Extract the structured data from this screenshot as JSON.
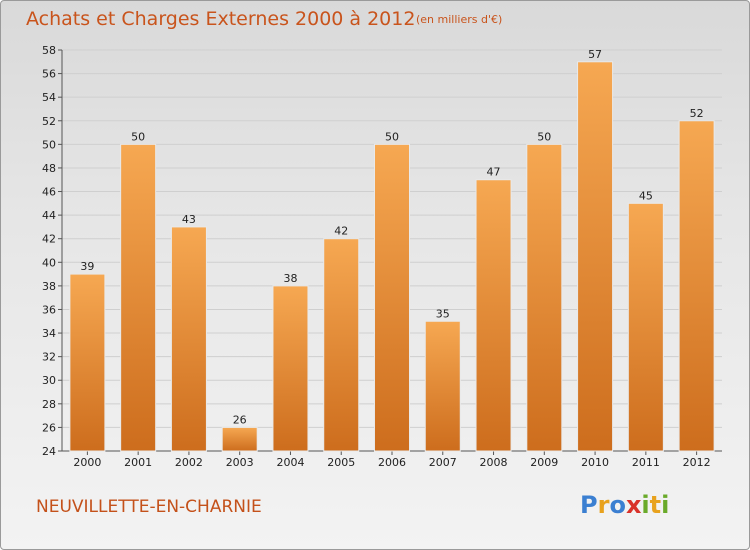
{
  "header": {
    "title": "Achats et Charges Externes 2000 à 2012",
    "subtitle": "(en milliers d'€)"
  },
  "footer": {
    "commune": "NEUVILLETTE-EN-CHARNIE",
    "logo": "Proxiti",
    "logo_letters": [
      "P",
      "r",
      "o",
      "x",
      "i",
      "t",
      "i"
    ],
    "logo_colors": [
      "#3b7fd1",
      "#e8a21e",
      "#3b7fd1",
      "#d9322a",
      "#6aaa2a",
      "#e8a21e",
      "#6aaa2a"
    ]
  },
  "colors": {
    "bar": "#f0a04a",
    "bar_dark": "#c96a1e",
    "title": "#c9541c"
  },
  "chart_data": {
    "type": "bar",
    "title": "Achats et Charges Externes 2000 à 2012",
    "subtitle": "(en milliers d'€)",
    "categories": [
      "2000",
      "2001",
      "2002",
      "2003",
      "2004",
      "2005",
      "2006",
      "2007",
      "2008",
      "2009",
      "2010",
      "2011",
      "2012"
    ],
    "values": [
      39,
      50,
      43,
      26,
      38,
      42,
      50,
      35,
      47,
      50,
      57,
      45,
      52
    ],
    "ylim": [
      24,
      58
    ],
    "yticks": [
      24,
      26,
      28,
      30,
      32,
      34,
      36,
      38,
      40,
      42,
      44,
      46,
      48,
      50,
      52,
      54,
      56,
      58
    ],
    "grid": true,
    "data_labels": true
  }
}
